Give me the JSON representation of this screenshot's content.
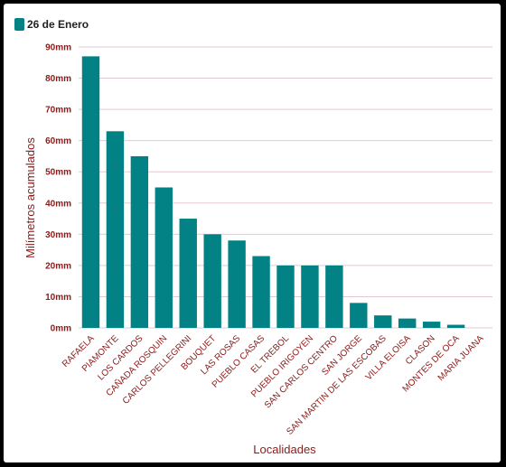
{
  "chart_data": {
    "type": "bar",
    "categories": [
      "RAFAELA",
      "PIAMONTE",
      "LOS CARDOS",
      "CAÑADA ROSQUIN",
      "CARLOS PELLEGRINI",
      "BOUQUET",
      "LAS ROSAS",
      "PUEBLO CASAS",
      "EL TREBOL",
      "PUEBLO IRIGOYEN",
      "SAN CARLOS CENTRO",
      "SAN JORGE",
      "SAN MARTIN DE LAS ESCOBAS",
      "VILLA ELOISA",
      "CLASON",
      "MONTES DE OCA",
      "MARIA JUANA"
    ],
    "series": [
      {
        "name": "26 de Enero",
        "values": [
          87,
          63,
          55,
          45,
          35,
          30,
          28,
          23,
          20,
          20,
          20,
          8,
          4,
          3,
          2,
          1,
          0
        ]
      }
    ],
    "xlabel": "Localidades",
    "ylabel": "Milímetros acumulados",
    "ylim": [
      0,
      90
    ],
    "yticks": [
      "0mm",
      "10mm",
      "20mm",
      "30mm",
      "40mm",
      "50mm",
      "60mm",
      "70mm",
      "80mm",
      "90mm"
    ],
    "grid": true,
    "legend_position": "top-left",
    "colors": {
      "bar": "#028284",
      "axis_text": "#8b1a1a",
      "grid": "#e3c9cf"
    }
  }
}
